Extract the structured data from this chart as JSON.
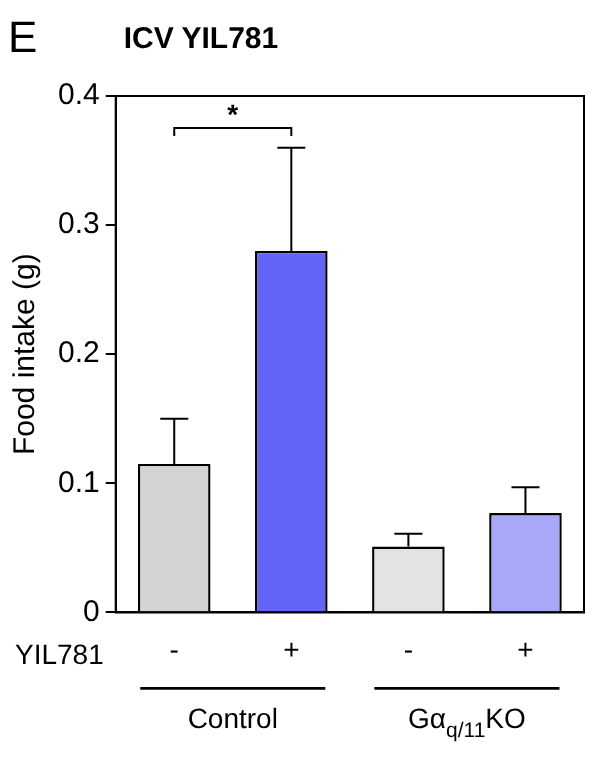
{
  "chart_data": {
    "type": "bar",
    "title": "ICV YIL781",
    "ylabel": "Food intake (g)",
    "xlabel": "YIL781",
    "categories": [
      "-",
      "+",
      "-",
      "+"
    ],
    "values": [
      0.115,
      0.28,
      0.051,
      0.077
    ],
    "errors": [
      0.035,
      0.08,
      0.01,
      0.02
    ],
    "colors": [
      "#d3d3d3",
      "#6464f8",
      "#e3e3e3",
      "#a8a8f8"
    ],
    "ylim": [
      0,
      0.4
    ],
    "yticks": [
      0,
      0.1,
      0.2,
      0.3,
      0.4
    ],
    "grid": false,
    "legend": false,
    "annotations": [
      "E",
      "*",
      "Control",
      "Gα$_{q/11}$KO"
    ]
  }
}
